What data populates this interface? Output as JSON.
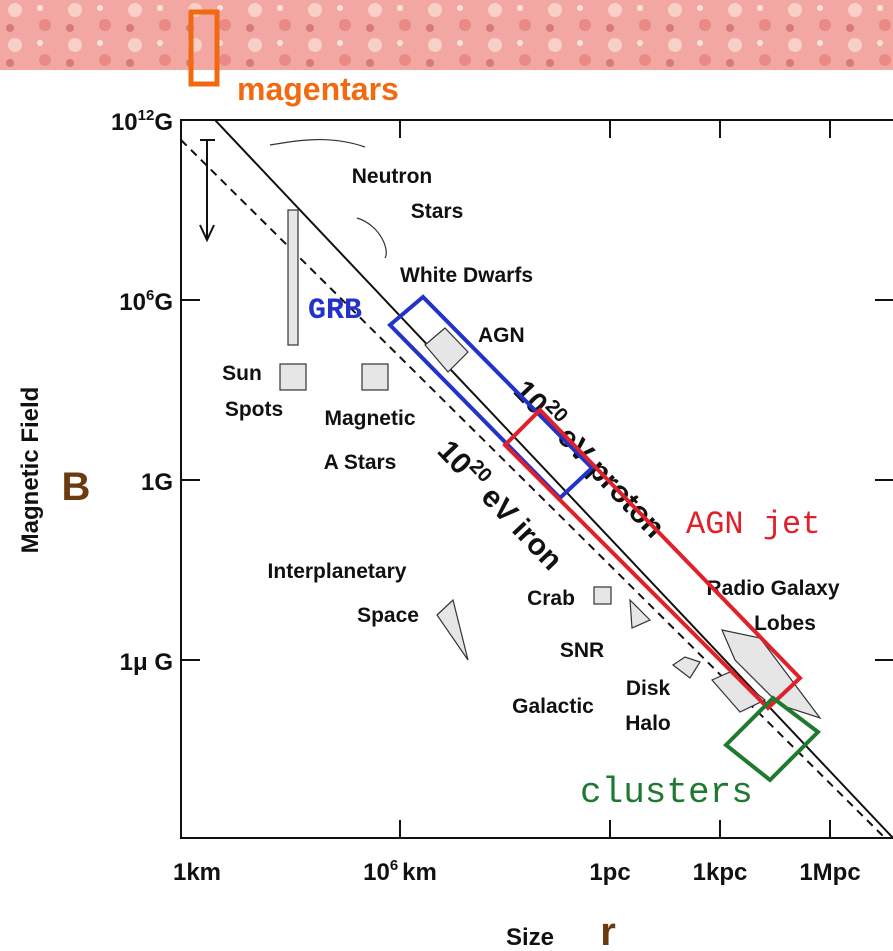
{
  "annotation": {
    "magnetars": "magentars",
    "grb": "GRB",
    "agn_jet": "AGN jet",
    "clusters": "clusters"
  },
  "axes": {
    "y_title": "Magnetic Field",
    "y_symbol": "B",
    "x_title": "Size",
    "x_symbol": "r",
    "y_ticks": [
      {
        "base": "10",
        "exp": "12",
        "unit": "G"
      },
      {
        "base": "10",
        "exp": "6",
        "unit": "G"
      },
      {
        "unit": "1G"
      },
      {
        "unit": "1μ G"
      }
    ],
    "x_ticks": [
      {
        "unit": "1km"
      },
      {
        "base": "10",
        "exp": "6",
        "unit": "km"
      },
      {
        "unit": "1pc"
      },
      {
        "unit": "1kpc"
      },
      {
        "unit": "1Mpc"
      }
    ]
  },
  "lines": {
    "proton": {
      "base": "10",
      "exp": "20",
      "unit": "eV proton"
    },
    "iron": {
      "base": "10",
      "exp": "20",
      "unit": "eV iron"
    }
  },
  "objects": {
    "neutron": [
      "Neutron",
      "Stars"
    ],
    "white_dwarfs": "White Dwarfs",
    "agn": "AGN",
    "sun_spots": [
      "Sun",
      "Spots"
    ],
    "magnetic_stars": [
      "Magnetic",
      "A Stars"
    ],
    "interplanetary": [
      "Interplanetary",
      "Space"
    ],
    "crab": "Crab",
    "snr": "SNR",
    "radio_lobes": [
      "Radio Galaxy",
      "Lobes"
    ],
    "galactic": "Galactic",
    "disk_halo": [
      "Disk",
      "Halo"
    ]
  }
}
